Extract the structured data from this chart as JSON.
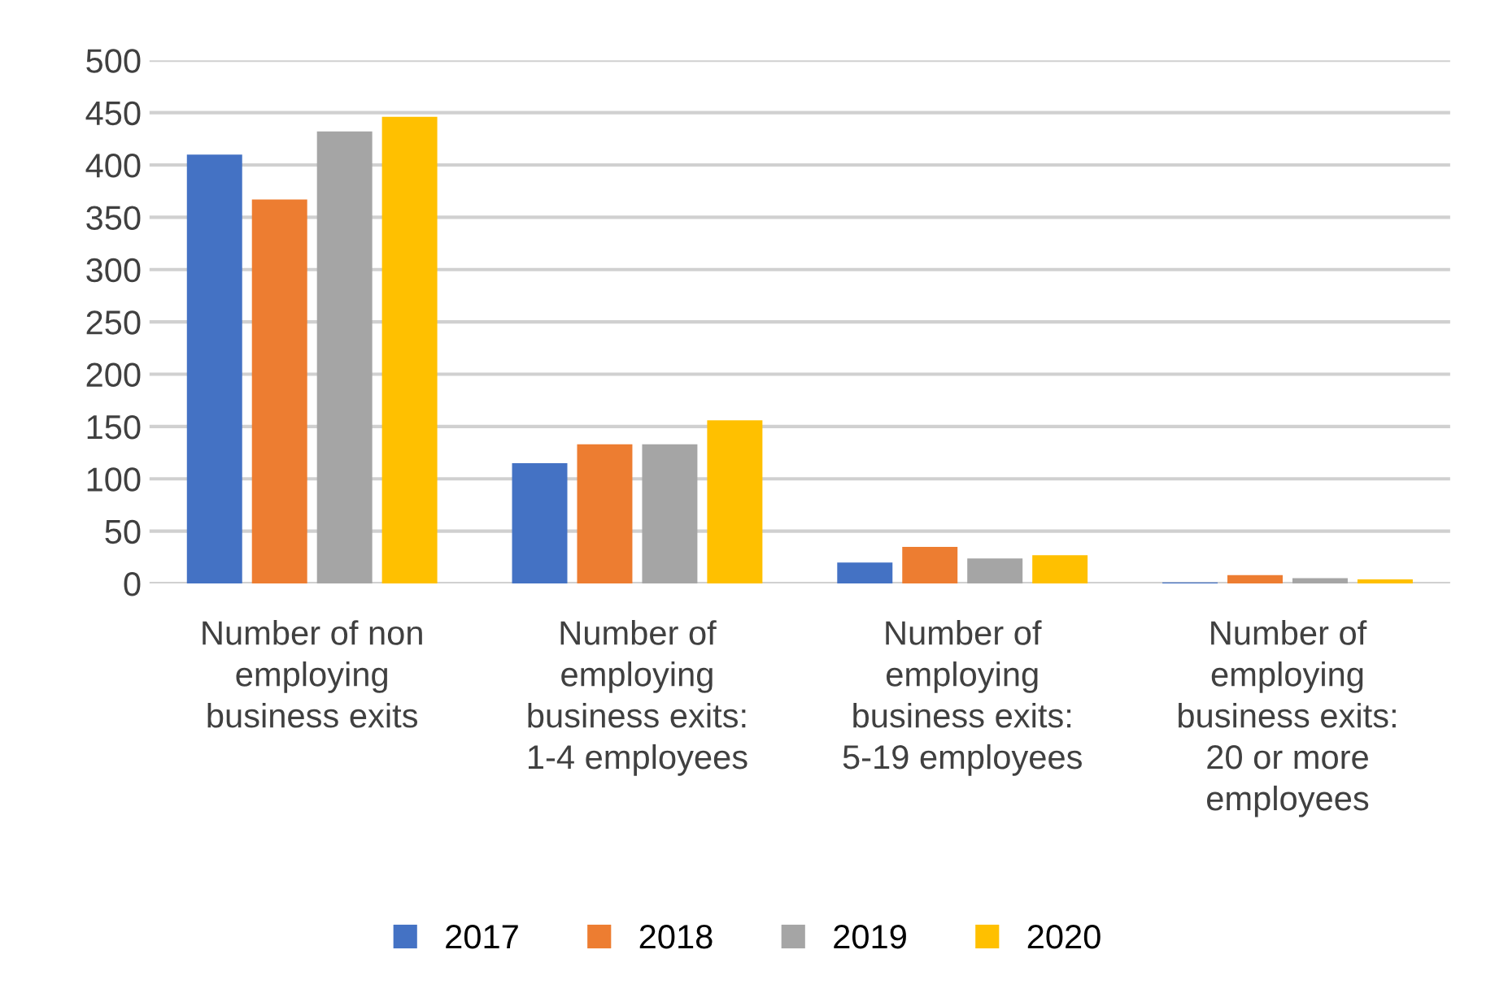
{
  "chart_data": {
    "type": "bar",
    "categories": [
      "Number of non employing business exits",
      "Number of employing business exits: 1-4 employees",
      "Number of employing business exits: 5-19 employees",
      "Number of employing business exits: 20 or more employees"
    ],
    "series": [
      {
        "name": "2017",
        "color": "#4472c4",
        "values": [
          410,
          115,
          20,
          1
        ]
      },
      {
        "name": "2018",
        "color": "#ed7d31",
        "values": [
          367,
          133,
          35,
          8
        ]
      },
      {
        "name": "2019",
        "color": "#a5a5a5",
        "values": [
          432,
          133,
          24,
          5
        ]
      },
      {
        "name": "2020",
        "color": "#ffc000",
        "values": [
          446,
          156,
          27,
          4
        ]
      }
    ],
    "ylim": [
      0,
      500
    ],
    "yticks": [
      0,
      50,
      100,
      150,
      200,
      250,
      300,
      350,
      400,
      450,
      500
    ],
    "grid": "y",
    "legend": "bottom"
  }
}
